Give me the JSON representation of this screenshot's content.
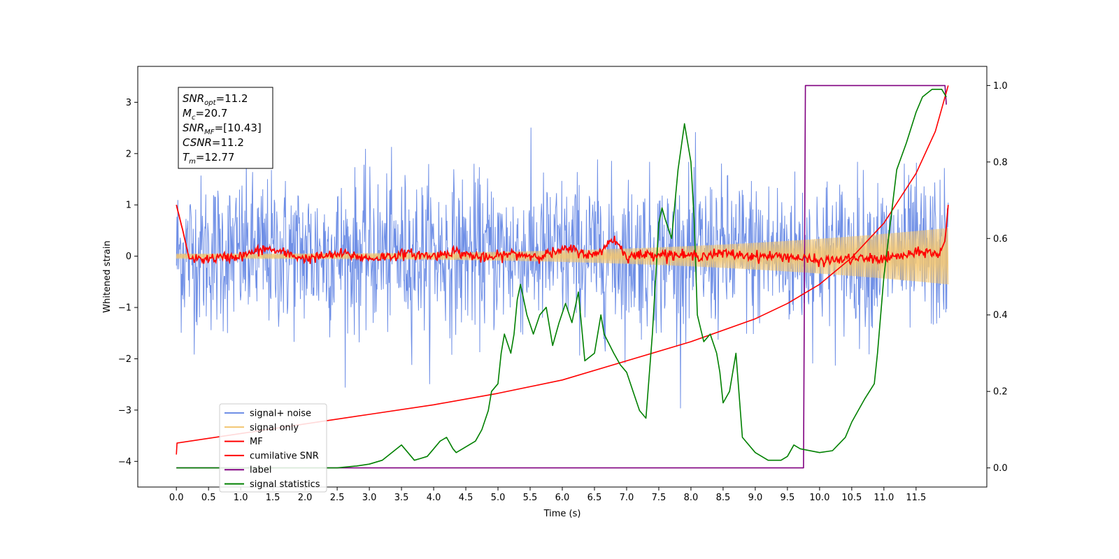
{
  "chart_data": {
    "type": "line",
    "xlabel": "Time (s)",
    "ylabel": "Whitened strain",
    "xlim": [
      -0.6,
      12.6
    ],
    "ylim_left": [
      -4.5,
      3.7
    ],
    "ylim_right": [
      -0.05,
      1.05
    ],
    "x_ticks": [
      0.0,
      0.5,
      1.0,
      1.5,
      2.0,
      2.5,
      3.0,
      3.5,
      4.0,
      4.5,
      5.0,
      5.5,
      6.0,
      6.5,
      7.0,
      7.5,
      8.0,
      8.5,
      9.0,
      9.5,
      10.0,
      10.5,
      11.0,
      11.5
    ],
    "x_tick_labels": [
      "0.0",
      "0.5",
      "1.0",
      "1.5",
      "2.0",
      "2.5",
      "3.0",
      "3.5",
      "4.0",
      "4.5",
      "5.0",
      "5.5",
      "6.0",
      "6.5",
      "7.0",
      "7.5",
      "8.0",
      "8.5",
      "9.0",
      "9.5",
      "10.0",
      "10.5",
      "11.0",
      "11.5"
    ],
    "y_left_ticks": [
      3,
      2,
      1,
      0,
      -1,
      -2,
      -3,
      -4
    ],
    "y_left_tick_labels": [
      "3",
      "2",
      "1",
      "0",
      "−1",
      "−2",
      "−3",
      "−4"
    ],
    "y_right_ticks": [
      1.0,
      0.8,
      0.6,
      0.4,
      0.2,
      0.0
    ],
    "y_right_tick_labels": [
      "1.0",
      "0.8",
      "0.6",
      "0.4",
      "0.2",
      "0.0"
    ],
    "grid": false,
    "legend_position": "lower-left",
    "annotation": {
      "lines": [
        {
          "main": "SNR",
          "sub": "opt",
          "value": "=11.2"
        },
        {
          "main": "M",
          "sub": "c",
          "value": "=20.7"
        },
        {
          "main": "SNR",
          "sub": "MF",
          "value": "=[10.43]"
        },
        {
          "main": "CSNR",
          "sub": "",
          "value": "=11.2"
        },
        {
          "main": "T",
          "sub": "m",
          "value": "=12.77"
        }
      ]
    },
    "series": [
      {
        "name": "signal+ noise",
        "axis": "left",
        "color": "#6f8fe6",
        "description_type": "noise_band",
        "band_mean": 0.05,
        "band_std": 0.75,
        "x_range": [
          0.0,
          12.0
        ]
      },
      {
        "name": "signal only",
        "axis": "left",
        "color": "#f2c46d",
        "description_type": "chirp",
        "amplitude_start": 0.05,
        "amplitude_end": 0.55,
        "x_range": [
          0.0,
          12.0
        ]
      },
      {
        "name": "MF",
        "axis": "left",
        "color": "#ff0000",
        "x": [
          0.0,
          0.1,
          0.2,
          0.5,
          1.0,
          1.4,
          2.0,
          2.6,
          3.0,
          3.6,
          4.0,
          4.3,
          4.8,
          5.2,
          5.6,
          6.0,
          6.1,
          6.5,
          6.8,
          7.0,
          7.5,
          8.0,
          8.5,
          9.0,
          9.5,
          10.0,
          10.5,
          11.0,
          11.5,
          11.7,
          11.85,
          11.95,
          12.0
        ],
        "y": [
          1.0,
          0.5,
          -0.05,
          -0.05,
          0.0,
          0.15,
          -0.05,
          0.05,
          -0.05,
          0.05,
          0.0,
          0.1,
          -0.05,
          0.05,
          0.0,
          0.1,
          0.15,
          0.0,
          0.35,
          0.0,
          0.05,
          0.0,
          0.05,
          0.0,
          0.0,
          -0.1,
          -0.05,
          -0.05,
          0.05,
          0.1,
          0.0,
          0.3,
          1.0
        ]
      },
      {
        "name": "cumilative SNR",
        "axis": "right",
        "color": "#ff0000",
        "x": [
          0.0,
          0.01,
          1.0,
          2.0,
          3.0,
          4.0,
          5.0,
          6.0,
          7.0,
          8.0,
          9.0,
          9.5,
          10.0,
          10.5,
          11.0,
          11.5,
          11.8,
          12.0
        ],
        "y": [
          0.035,
          0.065,
          0.09,
          0.115,
          0.14,
          0.165,
          0.195,
          0.23,
          0.28,
          0.33,
          0.39,
          0.43,
          0.48,
          0.55,
          0.64,
          0.77,
          0.88,
          1.0
        ]
      },
      {
        "name": "label",
        "axis": "right",
        "color": "#800080",
        "x": [
          0.0,
          9.75,
          9.78,
          11.95,
          11.97
        ],
        "y": [
          0.0,
          0.0,
          1.0,
          1.0,
          0.95
        ]
      },
      {
        "name": "signal statistics",
        "axis": "right",
        "color": "#008000",
        "x": [
          0.0,
          2.5,
          2.8,
          3.0,
          3.2,
          3.35,
          3.5,
          3.6,
          3.7,
          3.8,
          3.9,
          4.0,
          4.1,
          4.2,
          4.3,
          4.35,
          4.45,
          4.55,
          4.65,
          4.75,
          4.85,
          4.9,
          5.0,
          5.05,
          5.1,
          5.2,
          5.25,
          5.3,
          5.35,
          5.45,
          5.55,
          5.65,
          5.75,
          5.85,
          5.95,
          6.05,
          6.15,
          6.25,
          6.35,
          6.5,
          6.6,
          6.65,
          6.8,
          6.9,
          7.0,
          7.1,
          7.2,
          7.3,
          7.4,
          7.5,
          7.55,
          7.6,
          7.7,
          7.8,
          7.9,
          8.0,
          8.05,
          8.1,
          8.2,
          8.3,
          8.4,
          8.45,
          8.5,
          8.6,
          8.7,
          8.8,
          9.0,
          9.2,
          9.4,
          9.5,
          9.6,
          9.7,
          10.0,
          10.2,
          10.4,
          10.5,
          10.6,
          10.7,
          10.85,
          10.9,
          11.0,
          11.2,
          11.35,
          11.5,
          11.6,
          11.75,
          11.9,
          11.97
        ],
        "y": [
          0.0,
          0.0,
          0.005,
          0.01,
          0.02,
          0.04,
          0.06,
          0.04,
          0.02,
          0.025,
          0.03,
          0.05,
          0.07,
          0.08,
          0.05,
          0.04,
          0.05,
          0.06,
          0.07,
          0.1,
          0.15,
          0.2,
          0.22,
          0.3,
          0.35,
          0.3,
          0.35,
          0.44,
          0.48,
          0.4,
          0.35,
          0.4,
          0.42,
          0.32,
          0.38,
          0.43,
          0.38,
          0.46,
          0.28,
          0.3,
          0.4,
          0.35,
          0.3,
          0.27,
          0.25,
          0.2,
          0.15,
          0.13,
          0.35,
          0.64,
          0.68,
          0.65,
          0.6,
          0.78,
          0.9,
          0.8,
          0.65,
          0.4,
          0.33,
          0.35,
          0.3,
          0.25,
          0.17,
          0.2,
          0.3,
          0.08,
          0.04,
          0.02,
          0.02,
          0.03,
          0.06,
          0.05,
          0.04,
          0.045,
          0.08,
          0.12,
          0.15,
          0.18,
          0.22,
          0.3,
          0.5,
          0.78,
          0.85,
          0.93,
          0.97,
          0.99,
          0.99,
          0.97
        ]
      }
    ]
  }
}
